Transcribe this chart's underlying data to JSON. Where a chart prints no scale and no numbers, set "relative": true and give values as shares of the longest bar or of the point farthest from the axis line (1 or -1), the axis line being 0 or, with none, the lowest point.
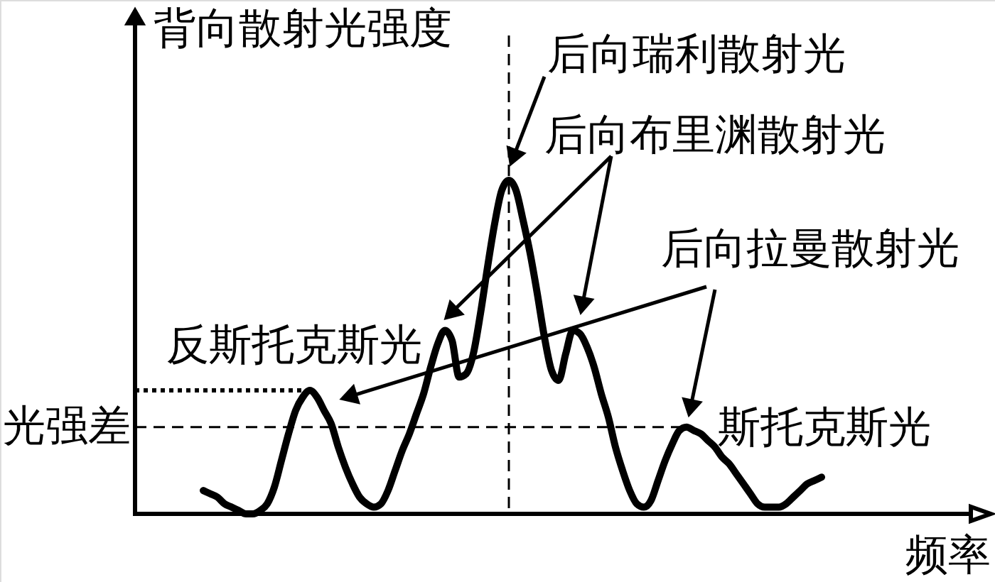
{
  "chart_data": {
    "type": "line",
    "relative": true,
    "line_style": "solid",
    "ylabel": "背向散射光强度",
    "xlabel": "频率",
    "categories": [
      null,
      null,
      null,
      null,
      null,
      null,
      null,
      null,
      null,
      null,
      null,
      null,
      null,
      null,
      null,
      null,
      null,
      null,
      null,
      null,
      null,
      null,
      null,
      null,
      null,
      null,
      null,
      null,
      null,
      null,
      null,
      null,
      null,
      null,
      null,
      null,
      null,
      null,
      null,
      null,
      null,
      null,
      null,
      null,
      null,
      null,
      null,
      null,
      null,
      null,
      null,
      null,
      null,
      null,
      null,
      null,
      null,
      null,
      null,
      null,
      null,
      null,
      null,
      null,
      null,
      null,
      null,
      null,
      null,
      null,
      null,
      null,
      null,
      null,
      null,
      null,
      null,
      null,
      null,
      null,
      null,
      null,
      null,
      null,
      null,
      null,
      null,
      null
    ],
    "series": [
      {
        "color": "#000000",
        "values": [
          0.07,
          0.06,
          0.05,
          0.03,
          0.02,
          0.01,
          0.0,
          0.0,
          0.01,
          0.03,
          0.08,
          0.16,
          0.24,
          0.31,
          0.35,
          0.37,
          0.35,
          0.31,
          0.27,
          0.2,
          0.14,
          0.09,
          0.05,
          0.03,
          0.02,
          0.03,
          0.07,
          0.13,
          0.19,
          0.24,
          0.3,
          0.36,
          0.44,
          0.51,
          0.55,
          0.52,
          0.41,
          0.42,
          0.48,
          0.6,
          0.74,
          0.87,
          0.97,
          1.0,
          0.97,
          0.88,
          0.78,
          0.66,
          0.53,
          0.43,
          0.4,
          0.48,
          0.55,
          0.54,
          0.5,
          0.44,
          0.36,
          0.29,
          0.2,
          0.13,
          0.07,
          0.03,
          0.02,
          0.04,
          0.1,
          0.16,
          0.21,
          0.25,
          0.26,
          0.25,
          0.24,
          0.22,
          0.2,
          0.17,
          0.15,
          0.12,
          0.09,
          0.06,
          0.03,
          0.02,
          0.02,
          0.02,
          0.03,
          0.05,
          0.07,
          0.09,
          0.1,
          0.11
        ]
      }
    ],
    "ref_lines": [
      {
        "axis": "y",
        "value": 0.26,
        "label": "光强差",
        "line_style": "dashed",
        "color": "#000000"
      },
      {
        "axis": "y",
        "value": 0.37,
        "line_style": "dotted",
        "color": "#000000"
      }
    ],
    "annotations": [
      "后向瑞利散射光",
      "后向布里渊散射光",
      "后向拉曼散射光",
      "反斯托克斯光",
      "斯托克斯光"
    ]
  }
}
